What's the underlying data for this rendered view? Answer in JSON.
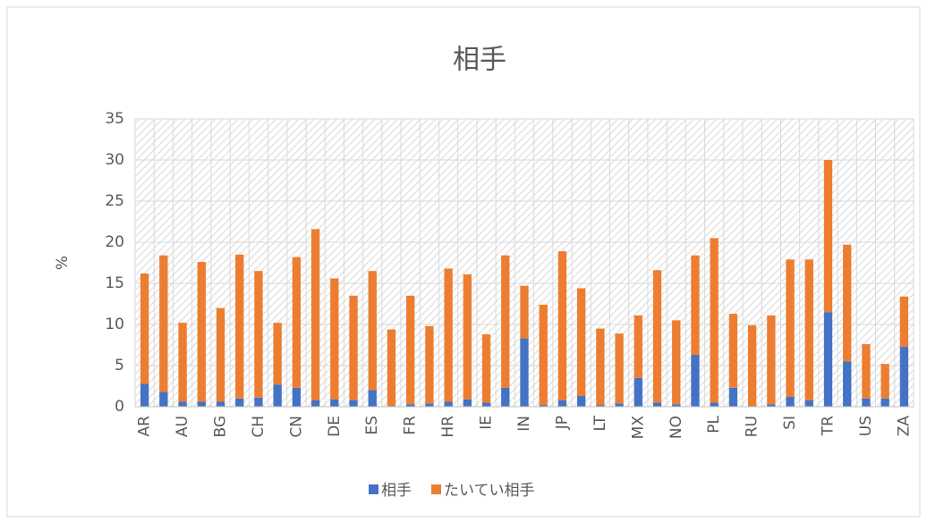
{
  "chart_data": {
    "type": "stacked_bar",
    "title": "相手",
    "y_label": "%",
    "categories": [
      "AR",
      null,
      "AU",
      null,
      "BG",
      null,
      "CH",
      null,
      "CN",
      null,
      "DE",
      null,
      "ES",
      null,
      "FR",
      null,
      "HR",
      null,
      "IE",
      null,
      "IN",
      null,
      "JP",
      null,
      "LT",
      null,
      "MX",
      null,
      "NO",
      null,
      "PL",
      null,
      "RU",
      null,
      "SI",
      null,
      "TR",
      null,
      "US",
      null,
      "ZA"
    ],
    "series": [
      {
        "name": "相手",
        "color": "#4472c4",
        "values": [
          2.8,
          1.8,
          0.6,
          0.6,
          0.6,
          1.0,
          1.1,
          2.7,
          2.3,
          0.8,
          0.9,
          0.8,
          2.0,
          0.1,
          0.3,
          0.4,
          0.6,
          0.9,
          0.5,
          2.3,
          8.3,
          0.2,
          0.8,
          1.3,
          0.2,
          0.4,
          3.5,
          0.5,
          0.3,
          6.3,
          0.5,
          2.3,
          0.1,
          0.3,
          1.2,
          0.8,
          11.5,
          5.5,
          1.0,
          1.0,
          7.3
        ]
      },
      {
        "name": "たいてい相手",
        "color": "#ed7d31",
        "values": [
          13.4,
          16.6,
          9.6,
          17.0,
          11.4,
          17.5,
          15.4,
          7.5,
          15.9,
          20.8,
          14.7,
          12.7,
          14.5,
          9.3,
          13.2,
          9.4,
          16.2,
          15.2,
          8.3,
          16.1,
          6.4,
          12.2,
          18.1,
          13.1,
          9.3,
          8.5,
          7.6,
          16.1,
          10.2,
          12.1,
          20.0,
          9.0,
          9.8,
          10.8,
          16.7,
          17.1,
          18.5,
          14.2,
          6.6,
          4.2,
          6.1
        ]
      }
    ],
    "ylim": [
      0,
      35
    ],
    "yticks": [
      0,
      5,
      10,
      15,
      20,
      25,
      30,
      35
    ],
    "grid": true,
    "legend": "bottom"
  }
}
